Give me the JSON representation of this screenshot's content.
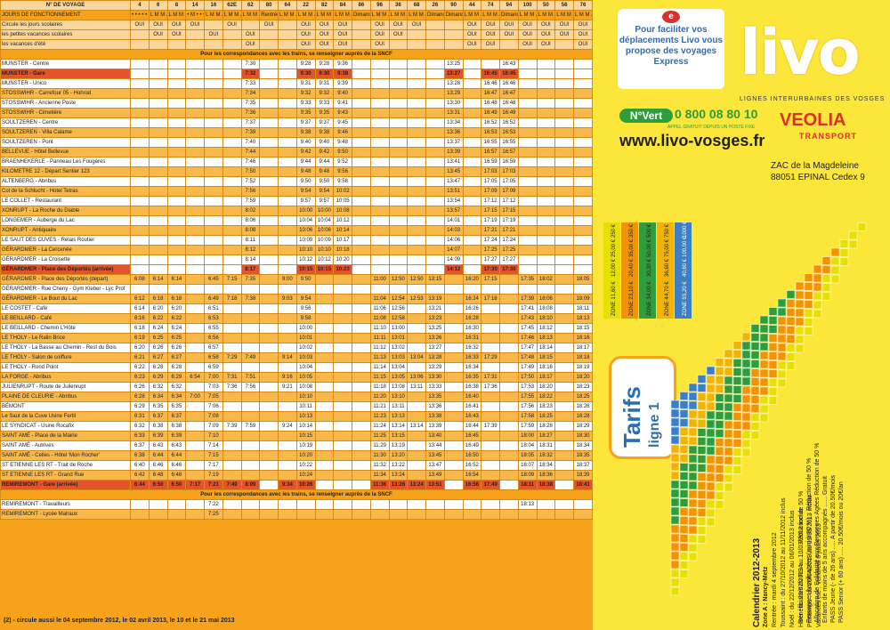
{
  "columns": [
    "4",
    "6",
    "8",
    "14",
    "16",
    "62E",
    "62",
    "80",
    "64",
    "22",
    "82",
    "84",
    "86",
    "96",
    "36",
    "68",
    "26",
    "90",
    "44",
    "74",
    "94",
    "100",
    "50",
    "56",
    "76"
  ],
  "day_codes": [
    "•\n•\n•\n•\n•\nS",
    "L\nM\nM\nJ\nV\nS",
    "L\nM\nM\nJ\nV\nS",
    "•\nM\n•\n•\n•\nS",
    "L\nM\nM\nJ\nV\nS",
    "L\nM\nM\nJ\nV\nS",
    "L\nM\nM\nJ\nV\nS",
    "Rentrée Scolaire",
    "L\nM\nM\nJ\nV\nS",
    "L\nM\nM\nJ\nV\nS",
    "L\nM\nM\nJ\nV\nS",
    "L\nM\nM\nJ\nV\nS",
    "Dimanche et Jour férié",
    "L\nM\nM\nJ\nV\nS",
    "L\nM\nM\nJ\nV\nS",
    "L\nM\nM\nJ\nV\nS",
    "Dimanche et Jour férié",
    "Dimanche et Jour férié",
    "L\nM\nM\nJ\nV\nS",
    "L\nM\nM\nJ\nV\nS",
    "Dimanche et Jour férié",
    "L\nM\nM\nJ\nV\nS",
    "L\nM\nM\nJ\nV\nS",
    "L\nM\nM\nJ\nV\nS",
    "L\nM\nM\nJ\nV\nS"
  ],
  "header": {
    "voyage": "N° DE VOYAGE",
    "jours": "JOURS DE FONCTIONNEMENT",
    "circule": "Circule",
    "scol": "les jours scolaires",
    "petites": "les petites vacances scolaires",
    "ete": "les vacances d'été",
    "note2": "(2)"
  },
  "periods": {
    "scol": [
      "OUI",
      "OUI",
      "OUI",
      "OUI",
      "",
      "OUI",
      "",
      "OUI",
      "",
      "OUI",
      "OUI",
      "OUI",
      "",
      "OUI",
      "OUI",
      "OUI",
      "",
      "",
      "OUI",
      "OUI",
      "OUI",
      "OUI",
      "OUI",
      "OUI",
      "OUI"
    ],
    "pet": [
      "",
      "OUI",
      "OUI",
      "",
      "OUI",
      "",
      "OUI",
      "",
      "",
      "OUI",
      "OUI",
      "OUI",
      "",
      "OUI",
      "OUI",
      "",
      "",
      "",
      "OUI",
      "OUI",
      "OUI",
      "OUI",
      "OUI",
      "OUI",
      "OUI"
    ],
    "ete": [
      "",
      "",
      "",
      "",
      "",
      "",
      "OUI",
      "",
      "",
      "OUI",
      "OUI",
      "OUI",
      "",
      "OUI",
      "",
      "",
      "",
      "",
      "OUI",
      "OUI",
      "",
      "OUI",
      "OUI",
      "",
      "OUI"
    ]
  },
  "sncf": "Pour les correspondances avec les trains, se renseigner auprès de la SNCF",
  "rows": [
    {
      "s": "MUNSTER - Centre",
      "c": "w",
      "t": {
        "6": "7:30",
        "9": "9:28",
        "10": "9:28",
        "11": "9:36",
        "17": "13:25",
        "20": "16:43"
      }
    },
    {
      "s": "MUNSTER - Gare",
      "c": "red",
      "t": {
        "6": "7:32",
        "9": "9:30",
        "10": "9:30",
        "11": "9:38",
        "17": "13:27",
        "19": "16:45",
        "20": "16:45"
      }
    },
    {
      "s": "MUNSTER - Unico",
      "c": "w",
      "t": {
        "6": "7:33",
        "9": "9:31",
        "10": "9:31",
        "11": "9:39",
        "17": "13:28",
        "19": "16:46",
        "20": "16:46"
      }
    },
    {
      "s": "STOSSWIHR - Carrefour 05 - Hohrod",
      "c": "o",
      "t": {
        "6": "7:34",
        "9": "9:32",
        "10": "9:32",
        "11": "9:40",
        "17": "13:29",
        "19": "16:47",
        "20": "16:47"
      }
    },
    {
      "s": "STOSSWIHR - Ancienne Poste",
      "c": "w",
      "t": {
        "6": "7:35",
        "9": "9:33",
        "10": "9:33",
        "11": "9:41",
        "17": "13:30",
        "19": "16:48",
        "20": "16:48"
      }
    },
    {
      "s": "STOSSWIHR - Cimetière",
      "c": "o",
      "t": {
        "6": "7:36",
        "9": "9:35",
        "10": "9:35",
        "11": "9:43",
        "17": "13:31",
        "19": "16:49",
        "20": "16:49"
      }
    },
    {
      "s": "SOULTZEREN - Centre",
      "c": "w",
      "t": {
        "6": "7:37",
        "9": "9:37",
        "10": "9:37",
        "11": "9:45",
        "17": "13:34",
        "19": "16:52",
        "20": "16:52"
      }
    },
    {
      "s": "SOULTZEREN - Villa Calame",
      "c": "o",
      "t": {
        "6": "7:39",
        "9": "9:38",
        "10": "9:38",
        "11": "9:46",
        "17": "13:36",
        "19": "16:53",
        "20": "16:53"
      }
    },
    {
      "s": "SOULTZEREN - Pont",
      "c": "w",
      "t": {
        "6": "7:40",
        "9": "9:40",
        "10": "9:40",
        "11": "9:48",
        "17": "13:37",
        "19": "16:55",
        "20": "16:55"
      }
    },
    {
      "s": "BELLEVUE - Hôtel Bellevue",
      "c": "o",
      "t": {
        "6": "7:44",
        "9": "9:42",
        "10": "9:42",
        "11": "9:50",
        "17": "13:39",
        "19": "16:57",
        "20": "16:57"
      }
    },
    {
      "s": "BRAENHEKERLE - Panneau Les Fougères",
      "c": "w",
      "t": {
        "6": "7:46",
        "9": "9:44",
        "10": "9:44",
        "11": "9:52",
        "17": "13:41",
        "19": "16:59",
        "20": "16:59"
      }
    },
    {
      "s": "KILOMETRE 12 - Départ Sentier 123",
      "c": "o",
      "t": {
        "6": "7:50",
        "9": "9:48",
        "10": "9:48",
        "11": "9:56",
        "17": "13:45",
        "19": "17:03",
        "20": "17:03"
      }
    },
    {
      "s": "ALTENBERG - Abribus",
      "c": "w",
      "t": {
        "6": "7:52",
        "9": "9:50",
        "10": "9:50",
        "11": "9:58",
        "17": "13:47",
        "19": "17:05",
        "20": "17:05"
      }
    },
    {
      "s": "Col de la Schlucht - Hotel Tetras",
      "c": "o",
      "t": {
        "6": "7:56",
        "9": "9:54",
        "10": "9:54",
        "11": "10:02",
        "17": "13:51",
        "19": "17:09",
        "20": "17:09"
      }
    },
    {
      "s": "LE COLLET - Restaurant",
      "c": "w",
      "t": {
        "6": "7:59",
        "9": "9:57",
        "10": "9:57",
        "11": "10:05",
        "17": "13:54",
        "19": "17:12",
        "20": "17:12"
      }
    },
    {
      "s": "XONRUPT - La Roche du Diable",
      "c": "o",
      "t": {
        "6": "8:02",
        "9": "10:00",
        "10": "10:00",
        "11": "10:08",
        "17": "13:57",
        "19": "17:15",
        "20": "17:15"
      }
    },
    {
      "s": "LONGEMER - Auberge du Lac",
      "c": "w",
      "t": {
        "6": "8:06",
        "9": "10:04",
        "10": "10:04",
        "11": "10:12",
        "17": "14:01",
        "19": "17:19",
        "20": "17:19"
      }
    },
    {
      "s": "XONRUPT - Antiquaire",
      "c": "o",
      "t": {
        "6": "8:08",
        "9": "10:06",
        "10": "10:06",
        "11": "10:14",
        "17": "14:03",
        "19": "17:21",
        "20": "17:21"
      }
    },
    {
      "s": "LE SAUT DES CUVES - Relais Routier",
      "c": "w",
      "t": {
        "6": "8:11",
        "9": "10:09",
        "10": "10:09",
        "11": "10:17",
        "17": "14:06",
        "19": "17:24",
        "20": "17:24"
      }
    },
    {
      "s": "GÉRARDMER - La Cercenée",
      "c": "o",
      "t": {
        "6": "8:12",
        "9": "10:10",
        "10": "10:10",
        "11": "10:18",
        "17": "14:07",
        "19": "17:25",
        "20": "17:25"
      }
    },
    {
      "s": "GÉRARDMER - La Croisette",
      "c": "w",
      "t": {
        "6": "8:14",
        "9": "10:12",
        "10": "10:12",
        "11": "10:20",
        "17": "14:09",
        "19": "17:27",
        "20": "17:27"
      }
    },
    {
      "s": "GÉRARDMER - Place des Déportés (arrivée)",
      "c": "red",
      "t": {
        "6": "8:17",
        "9": "10:15",
        "10": "10:15",
        "11": "10:23",
        "17": "14:12",
        "19": "17:30",
        "20": "17:30"
      }
    },
    {
      "s": "GÉRARDMER - Place des Déportés (départ)",
      "c": "o",
      "t": {
        "0": "6:08",
        "1": "6:14",
        "2": "6:14",
        "4": "6:45",
        "5": "7:15",
        "6": "7:35",
        "8": "9:00",
        "9": "9:50",
        "13": "11:00",
        "14": "12:50",
        "15": "12:50",
        "16": "13:15",
        "18": "16:20",
        "19": "17:15",
        "21": "17:35",
        "22": "18:02",
        "24": "18:05"
      }
    },
    {
      "s": "GÉRARDMER - Rue Cheny - Gym Kleber - Lyc Prof",
      "c": "w",
      "t": {}
    },
    {
      "s": "GÉRARDMER - Le Bout du Lac",
      "c": "o",
      "t": {
        "0": "6:12",
        "1": "6:18",
        "2": "6:18",
        "4": "6:49",
        "5": "7:18",
        "6": "7:38",
        "8": "9:03",
        "9": "9:54",
        "13": "11:04",
        "14": "12:54",
        "15": "12:53",
        "16": "13:19",
        "18": "16:24",
        "19": "17:18",
        "21": "17:39",
        "22": "18:06",
        "24": "18:09"
      }
    },
    {
      "s": "LE COSTET - Café",
      "c": "w",
      "t": {
        "0": "6:14",
        "1": "6:20",
        "2": "6:20",
        "4": "6:51",
        "9": "9:56",
        "13": "11:06",
        "14": "12:56",
        "16": "13:21",
        "18": "16:26",
        "21": "17:41",
        "22": "18:08",
        "24": "18:11"
      }
    },
    {
      "s": "LE BEILLARD - Café",
      "c": "o",
      "t": {
        "0": "6:16",
        "1": "6:22",
        "2": "6:22",
        "4": "6:53",
        "9": "9:58",
        "13": "11:08",
        "14": "12:58",
        "16": "13:23",
        "18": "16:28",
        "21": "17:43",
        "22": "18:10",
        "24": "18:13"
      }
    },
    {
      "s": "LE BEILLARD - Chemin L'Hôte",
      "c": "w",
      "t": {
        "0": "6:18",
        "1": "6:24",
        "2": "6:24",
        "4": "6:55",
        "9": "10:00",
        "13": "11:10",
        "14": "13:00",
        "16": "13:25",
        "18": "16:30",
        "21": "17:45",
        "22": "18:12",
        "24": "18:15"
      }
    },
    {
      "s": "LE THOLY - Le Ralin Brice",
      "c": "o",
      "t": {
        "0": "6:19",
        "1": "6:25",
        "2": "6:25",
        "4": "6:56",
        "9": "10:01",
        "13": "11:11",
        "14": "13:01",
        "16": "13:26",
        "18": "16:31",
        "21": "17:46",
        "22": "18:13",
        "24": "18:16"
      }
    },
    {
      "s": "LE THOLY - La Basse au Chemin - Rest du Bois",
      "c": "w",
      "t": {
        "0": "6:20",
        "1": "6:26",
        "2": "6:26",
        "4": "6:57",
        "9": "10:02",
        "13": "11:12",
        "14": "13:02",
        "16": "13:27",
        "18": "16:32",
        "21": "17:47",
        "22": "18:14",
        "24": "18:17"
      }
    },
    {
      "s": "LE THOLY - Salon de coiffure",
      "c": "o",
      "t": {
        "0": "6:21",
        "1": "6:27",
        "2": "6:27",
        "4": "6:58",
        "5": "7:29",
        "6": "7:49",
        "8": "9:14",
        "9": "10:03",
        "13": "11:13",
        "14": "13:03",
        "15": "13:04",
        "16": "13:28",
        "18": "16:33",
        "19": "17:29",
        "21": "17:48",
        "22": "18:15",
        "24": "18:18"
      }
    },
    {
      "s": "LE THOLY - Rond Point",
      "c": "w",
      "t": {
        "0": "6:22",
        "1": "6:28",
        "2": "6:28",
        "4": "6:59",
        "9": "10:04",
        "13": "11:14",
        "14": "13:04",
        "16": "13:29",
        "18": "16:34",
        "21": "17:49",
        "22": "18:16",
        "24": "18:19"
      }
    },
    {
      "s": "LA FORGE - Abribus",
      "c": "o",
      "t": {
        "0": "6:23",
        "1": "6:29",
        "2": "6:29",
        "3": "6:54",
        "4": "7:00",
        "5": "7:31",
        "6": "7:51",
        "8": "9:16",
        "9": "10:05",
        "13": "11:15",
        "14": "13:05",
        "15": "13:06",
        "16": "13:30",
        "18": "16:35",
        "19": "17:31",
        "21": "17:50",
        "22": "18:17",
        "24": "18:20"
      }
    },
    {
      "s": "JULIENRUPT - Route de Julienrupt",
      "c": "w",
      "t": {
        "0": "6:26",
        "1": "6:32",
        "2": "6:32",
        "4": "7:03",
        "5": "7:36",
        "6": "7:56",
        "8": "9:21",
        "9": "10:08",
        "13": "11:18",
        "14": "13:08",
        "15": "13:11",
        "16": "13:33",
        "18": "16:38",
        "19": "17:36",
        "21": "17:53",
        "22": "18:20",
        "24": "18:23"
      }
    },
    {
      "s": "PLAINE DE CLEURIE - Abribus",
      "c": "o",
      "t": {
        "0": "6:28",
        "1": "6:34",
        "2": "6:34",
        "3": "7:00",
        "4": "7:05",
        "9": "10:10",
        "13": "11:20",
        "14": "13:10",
        "16": "13:35",
        "18": "16:40",
        "21": "17:55",
        "22": "18:22",
        "24": "18:25"
      }
    },
    {
      "s": "BÉMONT",
      "c": "w",
      "t": {
        "0": "6:29",
        "1": "6:35",
        "2": "6:35",
        "4": "7:06",
        "9": "10:11",
        "13": "11:21",
        "14": "13:11",
        "16": "13:36",
        "18": "16:41",
        "21": "17:56",
        "22": "18:23",
        "24": "18:26"
      }
    },
    {
      "s": "Le Saut de la Cuve Usine Fertil",
      "c": "o",
      "t": {
        "0": "6:31",
        "1": "6:37",
        "2": "6:37",
        "4": "7:08",
        "9": "10:13",
        "13": "11:23",
        "14": "13:13",
        "16": "13:38",
        "18": "16:43",
        "21": "17:58",
        "22": "18:25",
        "24": "18:28"
      }
    },
    {
      "s": "LE SYNDICAT - Usine Rocafix",
      "c": "w",
      "t": {
        "0": "6:32",
        "1": "6:38",
        "2": "6:38",
        "4": "7:09",
        "5": "7:39",
        "6": "7:59",
        "8": "9:24",
        "9": "10:14",
        "13": "11:24",
        "14": "13:14",
        "15": "13:14",
        "16": "13:39",
        "18": "16:44",
        "19": "17:39",
        "21": "17:59",
        "22": "18:26",
        "24": "18:29"
      }
    },
    {
      "s": "SAINT AMÉ - Place de la Mairie",
      "c": "o",
      "t": {
        "0": "6:33",
        "1": "6:39",
        "2": "6:39",
        "4": "7:10",
        "9": "10:15",
        "13": "11:25",
        "14": "13:15",
        "16": "13:40",
        "18": "16:45",
        "21": "18:00",
        "22": "18:27",
        "24": "18:30"
      }
    },
    {
      "s": "SAINT AMÉ - Autrives",
      "c": "w",
      "t": {
        "0": "6:37",
        "1": "6:43",
        "2": "6:43",
        "4": "7:14",
        "9": "10:19",
        "13": "11:29",
        "14": "13:19",
        "16": "13:44",
        "18": "16:49",
        "21": "18:04",
        "22": "18:31",
        "24": "18:34"
      }
    },
    {
      "s": "SAINT AMÉ - Celles - Hôtel 'Mon Rocher'",
      "c": "o",
      "t": {
        "0": "6:38",
        "1": "6:44",
        "2": "6:44",
        "4": "7:15",
        "9": "10:20",
        "13": "11:30",
        "14": "13:20",
        "16": "13:45",
        "18": "16:50",
        "21": "18:05",
        "22": "18:32",
        "24": "18:35"
      }
    },
    {
      "s": "ST ETIENNE LES RT - Trait de Roche",
      "c": "w",
      "t": {
        "0": "6:40",
        "1": "6:46",
        "2": "6:46",
        "4": "7:17",
        "9": "10:22",
        "13": "11:32",
        "14": "13:22",
        "16": "13:47",
        "18": "16:52",
        "21": "18:07",
        "22": "18:34",
        "24": "18:37"
      }
    },
    {
      "s": "ST ETIENNE LES RT - Grand Rue",
      "c": "o",
      "t": {
        "0": "6:42",
        "1": "6:48",
        "2": "6:48",
        "4": "7:19",
        "9": "10:24",
        "13": "11:34",
        "14": "13:24",
        "16": "13:49",
        "18": "16:54",
        "21": "18:09",
        "22": "18:36",
        "24": "18:39"
      }
    },
    {
      "s": "REMIREMONT - Gare (arrivée)",
      "c": "red",
      "t": {
        "0": "6:44",
        "1": "6:50",
        "2": "6:50",
        "3": "7:17",
        "4": "7:21",
        "5": "7:49",
        "6": "8:09",
        "8": "9:34",
        "9": "10:26",
        "13": "11:36",
        "14": "13:26",
        "15": "13:24",
        "16": "13:51",
        "18": "16:56",
        "19": "17:49",
        "21": "18:11",
        "22": "18:38",
        "24": "18:41"
      }
    },
    {
      "s": "REMIREMONT - Travailleurs",
      "c": "w",
      "t": {
        "4": "7:22",
        "21": "18:13"
      }
    },
    {
      "s": "REMIREMONT - Lycée Malraux",
      "c": "o",
      "t": {
        "4": "7:25"
      }
    }
  ],
  "footnote": "(2) - circule aussi le 04 septembre 2012, le 02 avril 2013, le 10 et le 21 mai 2013",
  "panel": {
    "promo": "Pour faciliter vos déplacements Livo vous propose des voyages Express",
    "logo": "livo",
    "logo_sub": "LIGNES INTERURBAINES DES VOSGES",
    "nvert": "N°Vert",
    "phone": "0 800 08 80 10",
    "appel": "APPEL GRATUIT DEPUIS UN POSTE FIXE",
    "url": "www.livo-vosges.fr",
    "veolia": "VEOLIA",
    "veolia_sub": "TRANSPORT",
    "addr1": "ZAC de la Magdeleine",
    "addr2": "88051 EPINAL Cedex 9",
    "tarifs": "Tarifs",
    "ligne": "ligne 1",
    "cal_title": "Calendrier 2012-2013",
    "cal_zone": "Zone A : Nancy-Metz",
    "cal_lines": [
      "Rentrée : mardi 4 septembre 2012",
      "Toussaint : du 27/10/2012 au 11/11/2012 inclus",
      "Noël : du 22/12/2012 au 06/01/2013 inclus",
      "Hiver : du 23/02/2013 au 10/03/2013 inclus",
      "Printemps : du 20/04/2013 au 05/05/2013 inclus",
      "Vacances été : Vendredi 6 juillet 2013"
    ],
    "red_lines": [
      "Bénéficiaires du RSA .......... Réduction de 50 %",
      "Personnes handicapées (mini à 80 %) .. Réduction de 50 %",
      "Allocation de Solidarité aux Personnes Agées Réduction de 50 %",
      "Enfants de moins de 5 ans accompagnés ...... Gratuit",
      "PASS Jeune (- de 26 ans) ..... A partir de 20.50€/mois",
      "PASS Senior (+ 60 ans) ..... 20.50€/mois ou 20€/an"
    ],
    "zones": [
      "ZONE 1",
      "ZONE 2",
      "ZONE 3",
      "ZONE 4",
      "ZONE 5"
    ],
    "zone_colors": [
      "#e8e000",
      "#f29400",
      "#2e9d3a",
      "#f2b400",
      "#3b7fc4"
    ],
    "billet": [
      "1,60 €",
      "3,10 €",
      "4,00 €",
      "4,70 €",
      "5,20 €"
    ],
    "carnet": [
      "12,00 €",
      "20,40 €",
      "30,30 €",
      "36,60 €",
      "40,60 €"
    ],
    "mensuel": [
      "25,00 €",
      "35,00 €",
      "50,00 €",
      "75,00 €",
      "100,00 €"
    ],
    "annuel": [
      "250 €",
      "350 €",
      "500 €",
      "750 €",
      "1000 €"
    ]
  }
}
